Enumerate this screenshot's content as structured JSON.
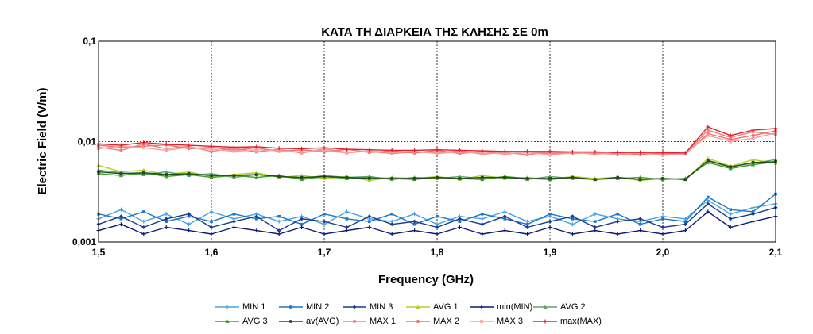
{
  "chart_data": {
    "type": "line",
    "title": "ΚΑΤΑ ΤΗ ΔΙΑΡΚΕΙΑ ΤΗΣ ΚΛΗΣΗΣ  ΣΕ 0m",
    "xlabel": "Frequency (GHz)",
    "ylabel": "Electric Field (V/m)",
    "x_scale": "linear",
    "y_scale": "log",
    "xlim": [
      1.5,
      2.1
    ],
    "ylim": [
      0.001,
      0.1
    ],
    "grid": true,
    "legend_position": "bottom",
    "x_ticks": [
      "1,5",
      "1,6",
      "1,7",
      "1,8",
      "1,9",
      "2,0",
      "2,1"
    ],
    "y_ticks": [
      "0,001",
      "0,01",
      "0,1"
    ],
    "x": [
      1.5,
      1.52,
      1.54,
      1.56,
      1.58,
      1.6,
      1.62,
      1.64,
      1.66,
      1.68,
      1.7,
      1.72,
      1.74,
      1.76,
      1.78,
      1.8,
      1.82,
      1.84,
      1.86,
      1.88,
      1.9,
      1.92,
      1.94,
      1.96,
      1.98,
      2.0,
      2.02,
      2.04,
      2.06,
      2.08,
      2.1
    ],
    "series": [
      {
        "name": "MIN 1",
        "color": "#4aa3df",
        "marker": "plus",
        "values": [
          0.0017,
          0.0021,
          0.0016,
          0.0019,
          0.0015,
          0.002,
          0.0017,
          0.0019,
          0.0016,
          0.0018,
          0.0015,
          0.002,
          0.0017,
          0.0016,
          0.0019,
          0.0015,
          0.0018,
          0.0017,
          0.002,
          0.0016,
          0.0018,
          0.0015,
          0.0019,
          0.0017,
          0.0016,
          0.0018,
          0.0017,
          0.0026,
          0.0019,
          0.0022,
          0.0024
        ]
      },
      {
        "name": "MIN 2",
        "color": "#1f77c4",
        "marker": "square",
        "values": [
          0.0019,
          0.0017,
          0.002,
          0.0016,
          0.0018,
          0.0016,
          0.0019,
          0.0017,
          0.0018,
          0.0015,
          0.0019,
          0.0017,
          0.0016,
          0.0019,
          0.0015,
          0.0018,
          0.0016,
          0.0019,
          0.0017,
          0.0015,
          0.0019,
          0.0017,
          0.0016,
          0.0019,
          0.0015,
          0.0017,
          0.0016,
          0.0028,
          0.0021,
          0.002,
          0.003
        ]
      },
      {
        "name": "MIN 3",
        "color": "#1a3c8c",
        "marker": "diamond",
        "values": [
          0.0015,
          0.0018,
          0.0014,
          0.0017,
          0.0019,
          0.0014,
          0.0016,
          0.0018,
          0.0013,
          0.0017,
          0.0016,
          0.0014,
          0.0018,
          0.0015,
          0.0016,
          0.0014,
          0.0017,
          0.0015,
          0.0018,
          0.0014,
          0.0016,
          0.0018,
          0.0014,
          0.0016,
          0.0017,
          0.0014,
          0.0015,
          0.0024,
          0.0017,
          0.0019,
          0.0022
        ]
      },
      {
        "name": "AVG 1",
        "color": "#b7d12a",
        "marker": "triangle",
        "values": [
          0.0058,
          0.005,
          0.0052,
          0.0047,
          0.005,
          0.0045,
          0.0047,
          0.0049,
          0.0044,
          0.0046,
          0.0043,
          0.0045,
          0.0041,
          0.0044,
          0.0043,
          0.0045,
          0.0042,
          0.0046,
          0.0043,
          0.0044,
          0.0042,
          0.0045,
          0.0043,
          0.0044,
          0.0041,
          0.0043,
          0.0042,
          0.0068,
          0.0057,
          0.0066,
          0.0061
        ]
      },
      {
        "name": "min(MIN)",
        "color": "#0d1a73",
        "marker": "plus",
        "values": [
          0.0013,
          0.0015,
          0.0012,
          0.0014,
          0.0013,
          0.0012,
          0.0014,
          0.0013,
          0.0012,
          0.0014,
          0.0012,
          0.0013,
          0.0014,
          0.0012,
          0.0013,
          0.0012,
          0.0014,
          0.0012,
          0.0013,
          0.0012,
          0.0014,
          0.0012,
          0.0013,
          0.0012,
          0.0013,
          0.0012,
          0.0013,
          0.002,
          0.0014,
          0.0016,
          0.0018
        ]
      },
      {
        "name": "AVG 2",
        "color": "#5fa36b",
        "marker": "triangle",
        "values": [
          0.0052,
          0.0049,
          0.0047,
          0.005,
          0.0046,
          0.0048,
          0.0044,
          0.0047,
          0.0045,
          0.0043,
          0.0046,
          0.0044,
          0.0045,
          0.0042,
          0.0044,
          0.0043,
          0.0045,
          0.0043,
          0.0044,
          0.0042,
          0.0045,
          0.0043,
          0.0042,
          0.0044,
          0.0042,
          0.0043,
          0.0042,
          0.0064,
          0.0056,
          0.0061,
          0.0066
        ]
      },
      {
        "name": "AVG 3",
        "color": "#3e9b2c",
        "marker": "triangle",
        "values": [
          0.0048,
          0.0046,
          0.0049,
          0.0045,
          0.0047,
          0.0044,
          0.0046,
          0.0044,
          0.0046,
          0.0042,
          0.0045,
          0.0043,
          0.0044,
          0.0043,
          0.0042,
          0.0044,
          0.0043,
          0.0042,
          0.0045,
          0.0043,
          0.0042,
          0.0044,
          0.0042,
          0.0043,
          0.0044,
          0.0042,
          0.0043,
          0.0062,
          0.0054,
          0.0059,
          0.0063
        ]
      },
      {
        "name": "av(AVG)",
        "color": "#1e4d18",
        "marker": "square",
        "values": [
          0.005,
          0.0048,
          0.0049,
          0.0047,
          0.0048,
          0.0046,
          0.0046,
          0.0047,
          0.0045,
          0.0044,
          0.0045,
          0.0044,
          0.0043,
          0.0043,
          0.0043,
          0.0044,
          0.0043,
          0.0044,
          0.0044,
          0.0043,
          0.0043,
          0.0044,
          0.0042,
          0.0044,
          0.0042,
          0.0043,
          0.0042,
          0.0065,
          0.0056,
          0.0062,
          0.0063
        ]
      },
      {
        "name": "MAX 1",
        "color": "#f08080",
        "marker": "square",
        "values": [
          0.0088,
          0.0082,
          0.0095,
          0.0085,
          0.009,
          0.008,
          0.0086,
          0.0079,
          0.0084,
          0.0077,
          0.0085,
          0.0078,
          0.008,
          0.0076,
          0.0079,
          0.0077,
          0.0081,
          0.0075,
          0.0078,
          0.0074,
          0.0079,
          0.0076,
          0.0078,
          0.0074,
          0.0077,
          0.0075,
          0.0076,
          0.013,
          0.011,
          0.0125,
          0.0118
        ]
      },
      {
        "name": "MAX 2",
        "color": "#ef6f6f",
        "marker": "circle",
        "values": [
          0.0092,
          0.0088,
          0.009,
          0.0093,
          0.0085,
          0.0088,
          0.0082,
          0.0087,
          0.008,
          0.0083,
          0.0079,
          0.0084,
          0.0078,
          0.0081,
          0.0077,
          0.0082,
          0.0076,
          0.008,
          0.0075,
          0.0079,
          0.0076,
          0.0078,
          0.0075,
          0.0077,
          0.0074,
          0.0077,
          0.0075,
          0.012,
          0.0105,
          0.0115,
          0.0128
        ]
      },
      {
        "name": "MAX 3",
        "color": "#f5a0a0",
        "marker": "star",
        "values": [
          0.0085,
          0.009,
          0.0087,
          0.0082,
          0.0088,
          0.0084,
          0.008,
          0.0083,
          0.0081,
          0.0079,
          0.0082,
          0.0077,
          0.0081,
          0.0078,
          0.008,
          0.0076,
          0.0079,
          0.0077,
          0.0076,
          0.0078,
          0.0074,
          0.0077,
          0.0076,
          0.0075,
          0.0077,
          0.0073,
          0.0076,
          0.0115,
          0.01,
          0.0108,
          0.0122
        ]
      },
      {
        "name": "max(MAX)",
        "color": "#e0202a",
        "marker": "plus",
        "values": [
          0.0095,
          0.0092,
          0.0098,
          0.0094,
          0.0092,
          0.009,
          0.0088,
          0.0089,
          0.0086,
          0.0085,
          0.0087,
          0.0084,
          0.0083,
          0.0082,
          0.0082,
          0.0083,
          0.0082,
          0.0081,
          0.008,
          0.008,
          0.008,
          0.0079,
          0.0079,
          0.0078,
          0.0078,
          0.0078,
          0.0077,
          0.014,
          0.0115,
          0.013,
          0.0135
        ]
      }
    ]
  }
}
